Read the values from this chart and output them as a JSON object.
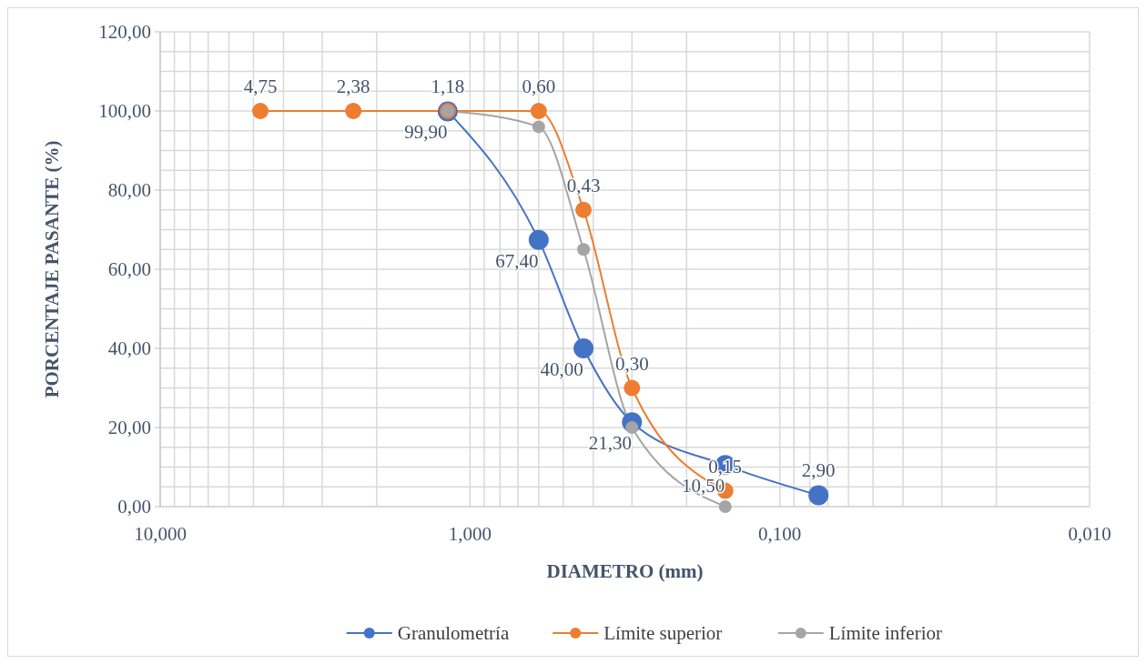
{
  "chart_data": {
    "type": "line",
    "xlabel": "DIAMETRO (mm)",
    "ylabel": "PORCENTAJE PASANTE (%)",
    "log": "x",
    "xlim": [
      10,
      0.01
    ],
    "xticks": [
      {
        "value": 10,
        "label": "10,000"
      },
      {
        "value": 1,
        "label": "1,000"
      },
      {
        "value": 0.1,
        "label": "0,100"
      },
      {
        "value": 0.01,
        "label": "0,010"
      }
    ],
    "ylim": [
      0,
      120
    ],
    "yticks": [
      {
        "value": 0,
        "label": "0,00"
      },
      {
        "value": 20,
        "label": "20,00"
      },
      {
        "value": 40,
        "label": "40,00"
      },
      {
        "value": 60,
        "label": "60,00"
      },
      {
        "value": 80,
        "label": "80,00"
      },
      {
        "value": 100,
        "label": "100,00"
      },
      {
        "value": 120,
        "label": "120,00"
      }
    ],
    "grid": true,
    "legend": "bottom",
    "marker": "circle",
    "line_style": "solid",
    "series": [
      {
        "name": "Granulometría",
        "color": "#4472c4",
        "x": [
          1.18,
          0.6,
          0.43,
          0.3,
          0.15,
          0.075
        ],
        "values": [
          99.9,
          67.4,
          40,
          21.3,
          10.5,
          2.9
        ],
        "value_labels": [
          "99,90",
          "67,40",
          "40,00",
          "21,30",
          "10,50",
          "2,90"
        ]
      },
      {
        "name": "Límite superior",
        "color": "#ed7d31",
        "x": [
          4.75,
          2.38,
          1.18,
          0.6,
          0.43,
          0.3,
          0.15
        ],
        "values": [
          100,
          100,
          100,
          100,
          75,
          30,
          4
        ]
      },
      {
        "name": "Límite inferior",
        "color": "#a5a5a5",
        "x": [
          1.18,
          0.6,
          0.43,
          0.3,
          0.15
        ],
        "values": [
          100,
          96,
          65,
          20,
          0
        ]
      }
    ],
    "annotations": [
      {
        "text": "4,75",
        "x": 4.75,
        "y": 100
      },
      {
        "text": "2,38",
        "x": 2.38,
        "y": 100
      },
      {
        "text": "1,18",
        "x": 1.18,
        "y": 100
      },
      {
        "text": "0,60",
        "x": 0.6,
        "y": 100
      },
      {
        "text": "0,43",
        "x": 0.43,
        "y": 75
      },
      {
        "text": "0,30",
        "x": 0.3,
        "y": 30
      },
      {
        "text": "0,15",
        "x": 0.15,
        "y": 4
      }
    ]
  }
}
